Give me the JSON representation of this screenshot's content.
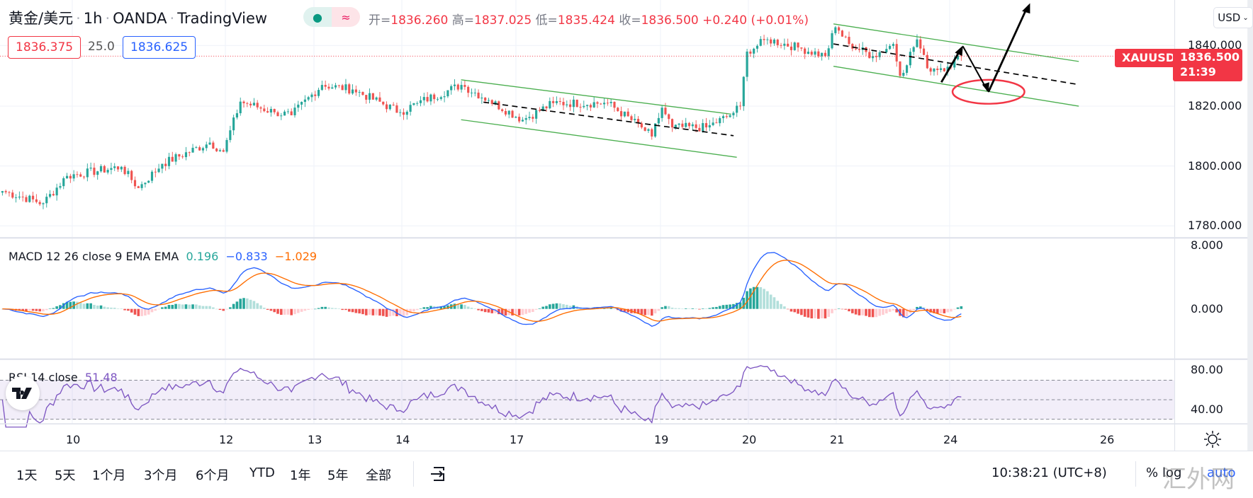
{
  "header": {
    "symbol": "黄金/美元",
    "interval": "1h",
    "broker": "OANDA",
    "source": "TradingView",
    "status_dot": "●",
    "status_wave": "≈",
    "ohlc": {
      "open_label": "开=",
      "open": "1836.260",
      "high_label": "高=",
      "high": "1837.025",
      "low_label": "低=",
      "low": "1835.424",
      "close_label": "收=",
      "close": "1836.500",
      "change": "+0.240 (+0.01%)"
    },
    "sell_price": "1836.375",
    "spread": "25.0",
    "buy_price": "1836.625"
  },
  "price_axis": {
    "currency": "USD",
    "ticks": [
      "1840.000",
      "1820.000",
      "1800.000",
      "1780.000"
    ],
    "symbol_tag": "XAUUSD",
    "last_price": "1836.500",
    "countdown": "21:39"
  },
  "macd": {
    "label": "MACD 12 26 close 9 EMA EMA",
    "hist": "0.196",
    "macd": "−0.833",
    "signal": "−1.029",
    "ticks": [
      "8.000",
      "0.000"
    ]
  },
  "rsi": {
    "label": "RSI 14 close",
    "value": "51.48",
    "ticks": [
      "80.00",
      "40.00"
    ]
  },
  "time_axis": [
    "10",
    "12",
    "13",
    "14",
    "17",
    "19",
    "20",
    "21",
    "24",
    "26"
  ],
  "toolbar": {
    "ranges": [
      "1天",
      "5天",
      "1个月",
      "3个月",
      "6个月",
      "YTD",
      "1年",
      "5年",
      "全部"
    ],
    "clock": "10:38:21 (UTC+8)",
    "percent": "%",
    "log": "log",
    "auto": "auto"
  },
  "logo_text": "TV",
  "watermark": "汇外网",
  "colors": {
    "up": "#26a69a",
    "down": "#ef5350",
    "macd": "#2962ff",
    "signal": "#ff6d00",
    "rsi": "#7e57c2",
    "channel": "#4caf50",
    "ellipse": "#f23645"
  },
  "chart_data": {
    "type": "candlestick",
    "title": "XAUUSD 1h",
    "price_range": [
      1776,
      1852
    ],
    "close_anchors": [
      [
        0,
        1792
      ],
      [
        12,
        1788
      ],
      [
        19,
        1797
      ],
      [
        35,
        1800
      ],
      [
        40,
        1793
      ],
      [
        47,
        1801
      ],
      [
        61,
        1808
      ],
      [
        65,
        1805
      ],
      [
        70,
        1821.5
      ],
      [
        80,
        1818
      ],
      [
        85,
        1817
      ],
      [
        94,
        1827
      ],
      [
        103,
        1825.5
      ],
      [
        117,
        1818
      ],
      [
        122,
        1821
      ],
      [
        135,
        1827
      ],
      [
        143,
        1822
      ],
      [
        153,
        1815.5
      ],
      [
        162,
        1821
      ],
      [
        178,
        1821
      ],
      [
        188,
        1813
      ],
      [
        191,
        1810
      ],
      [
        194,
        1819.5
      ],
      [
        197,
        1813
      ],
      [
        207,
        1813
      ],
      [
        214,
        1817
      ],
      [
        217,
        1820
      ],
      [
        219,
        1838
      ],
      [
        225,
        1842
      ],
      [
        235,
        1839
      ],
      [
        242,
        1836.5
      ],
      [
        245,
        1846
      ],
      [
        249,
        1840.5
      ],
      [
        256,
        1836.5
      ],
      [
        262,
        1840.5
      ],
      [
        264,
        1830
      ],
      [
        269,
        1842
      ],
      [
        272,
        1832.5
      ],
      [
        278,
        1833
      ],
      [
        282,
        1836.5
      ]
    ],
    "last_close": 1836.5,
    "rsi_bands": [
      30,
      50,
      70
    ]
  }
}
